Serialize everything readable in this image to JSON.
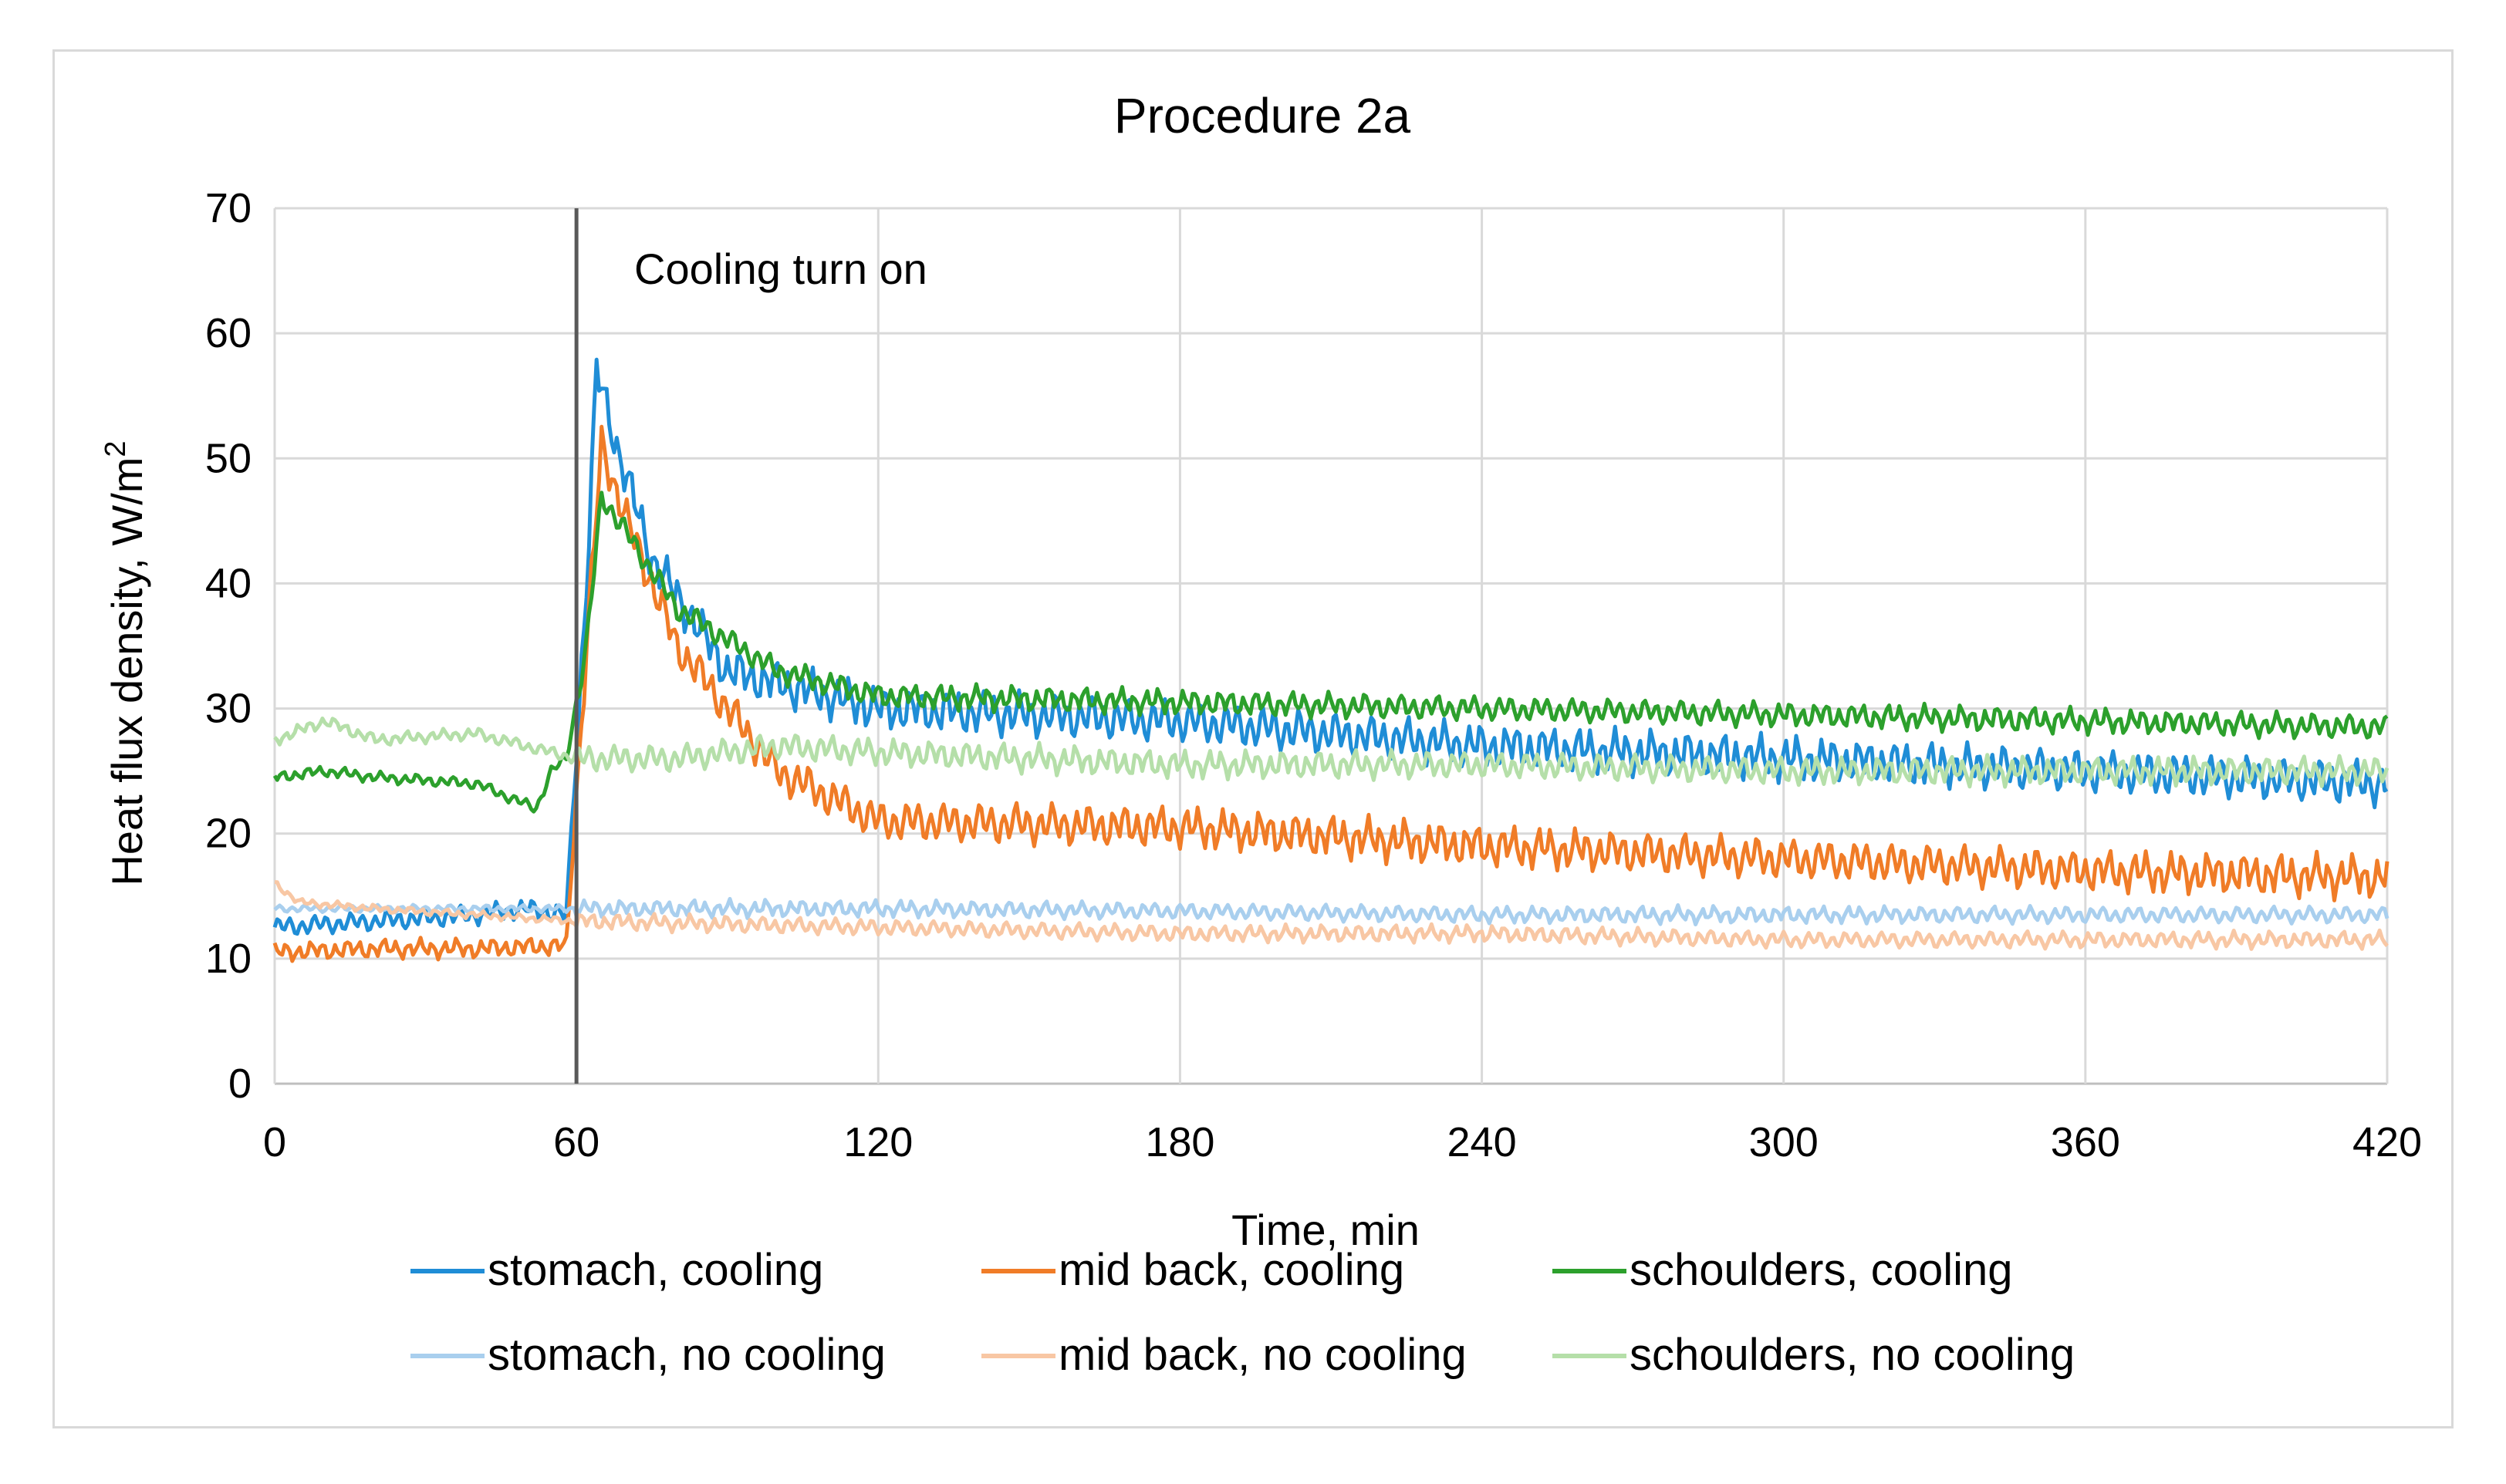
{
  "chart_data": {
    "type": "line",
    "title": "Procedure 2a",
    "xlabel": "Time, min",
    "ylabel": "Heat flux density, W/m",
    "ylabel_sup": "2",
    "xlim": [
      0,
      420
    ],
    "ylim": [
      0,
      70
    ],
    "xticks": [
      "0",
      "60",
      "120",
      "180",
      "240",
      "300",
      "360",
      "420"
    ],
    "yticks": [
      "0",
      "10",
      "20",
      "30",
      "40",
      "50",
      "60",
      "70"
    ],
    "grid": true,
    "legend_position": "bottom",
    "annotation": {
      "text": "Cooling turn on",
      "x": 60
    },
    "series": [
      {
        "name": "stomach, cooling",
        "color": "#1f8dd6",
        "x": [
          0,
          20,
          40,
          50,
          58,
          62,
          64,
          68,
          75,
          90,
          120,
          180,
          240,
          300,
          360,
          420
        ],
        "values": [
          12.5,
          13,
          13.5,
          14,
          13.5,
          40,
          57,
          51,
          42,
          33,
          30,
          29,
          27,
          26,
          25,
          24
        ],
        "noise": 1.6
      },
      {
        "name": "mid back, cooling",
        "color": "#f07c27",
        "x": [
          0,
          20,
          40,
          54,
          58,
          62,
          65,
          70,
          80,
          100,
          120,
          180,
          240,
          300,
          360,
          420
        ],
        "values": [
          10.5,
          10.8,
          10.8,
          11,
          11,
          35,
          51,
          45,
          35,
          25,
          21,
          20.5,
          19,
          18,
          17,
          16.5
        ],
        "noise": 1.5
      },
      {
        "name": "schoulders, cooling",
        "color": "#2ca02c",
        "x": [
          0,
          10,
          20,
          40,
          52,
          55,
          58,
          62,
          65,
          70,
          80,
          100,
          120,
          180,
          240,
          300,
          360,
          420
        ],
        "values": [
          24.5,
          25,
          24.5,
          24,
          22,
          25,
          26,
          35,
          47,
          44,
          38,
          33,
          31,
          30.5,
          30,
          29.5,
          29,
          28.5
        ],
        "noise": 0.9
      },
      {
        "name": "stomach, no cooling",
        "color": "#a9cfee",
        "x": [
          0,
          40,
          60,
          120,
          180,
          240,
          300,
          360,
          420
        ],
        "values": [
          14,
          14,
          14,
          14,
          13.8,
          13.5,
          13.5,
          13.5,
          13.5
        ],
        "noise": 0.6
      },
      {
        "name": "mid back, no cooling",
        "color": "#f8c7a4",
        "x": [
          0,
          5,
          20,
          40,
          60,
          120,
          180,
          240,
          300,
          360,
          420
        ],
        "values": [
          16,
          14.5,
          14,
          13.5,
          13,
          12.5,
          12,
          12,
          11.5,
          11.5,
          11.5
        ],
        "noise": 0.6
      },
      {
        "name": "schoulders, no cooling",
        "color": "#b5dfa9",
        "x": [
          0,
          10,
          20,
          40,
          60,
          80,
          100,
          120,
          180,
          240,
          300,
          360,
          420
        ],
        "values": [
          27.5,
          29,
          27.5,
          28,
          26,
          26,
          27,
          26.5,
          25.5,
          25.5,
          25,
          25,
          25
        ],
        "noise": 1.0
      }
    ],
    "legend": [
      {
        "label": "stomach, cooling",
        "color": "#1f8dd6"
      },
      {
        "label": "mid back, cooling",
        "color": "#f07c27"
      },
      {
        "label": "schoulders, cooling",
        "color": "#2ca02c"
      },
      {
        "label": "stomach, no cooling",
        "color": "#a9cfee"
      },
      {
        "label": "mid back, no cooling",
        "color": "#f8c7a4"
      },
      {
        "label": "schoulders, no cooling",
        "color": "#b5dfa9"
      }
    ],
    "gridline_color": "#d9d9d9",
    "axis_color": "#bfbfbf",
    "annotation_line_color": "#595959"
  }
}
